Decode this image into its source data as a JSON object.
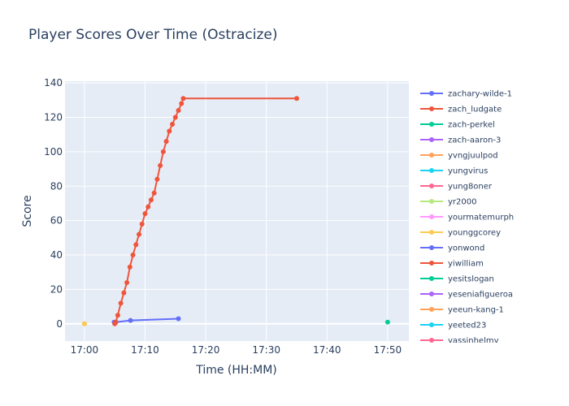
{
  "chart_data": {
    "type": "line",
    "title": "Player Scores Over Time (Ostracize)",
    "xlabel": "Time (HH:MM)",
    "ylabel": "Score",
    "x_tick_labels": [
      "17:00",
      "17:10",
      "17:20",
      "17:30",
      "17:40",
      "17:50"
    ],
    "x_range_minutes": [
      -3.2,
      53.5
    ],
    "ylim": [
      -10,
      141
    ],
    "y_ticks": [
      0,
      20,
      40,
      60,
      80,
      100,
      120,
      140
    ],
    "grid": true,
    "legend_position": "right",
    "series": [
      {
        "name": "zachary-wilde-1",
        "color": "#636efa",
        "x": [
          "17:04:54",
          "17:05:12",
          "17:07:36",
          "17:15:30"
        ],
        "y": [
          1,
          1,
          2,
          3
        ]
      },
      {
        "name": "zach_ludgate",
        "color": "#ef553b",
        "x": [
          "17:05:00",
          "17:05:10",
          "17:05:30",
          "17:06:00",
          "17:06:30",
          "17:07:00",
          "17:07:30",
          "17:08:00",
          "17:08:30",
          "17:09:00",
          "17:09:30",
          "17:10:00",
          "17:10:30",
          "17:11:00",
          "17:11:30",
          "17:12:00",
          "17:12:30",
          "17:13:00",
          "17:13:30",
          "17:14:00",
          "17:14:30",
          "17:15:00",
          "17:15:30",
          "17:16:00",
          "17:16:18",
          "17:35:00"
        ],
        "y": [
          0,
          1,
          5,
          12,
          18,
          24,
          33,
          40,
          46,
          52,
          58,
          64,
          68,
          72,
          76,
          84,
          92,
          100,
          106,
          112,
          116,
          120,
          124,
          128,
          131,
          131
        ]
      },
      {
        "name": "zach-perkel",
        "color": "#00cc96",
        "x": [
          "17:50:00"
        ],
        "y": [
          1
        ]
      },
      {
        "name": "zach-aaron-3",
        "color": "#ab63fa",
        "x": [],
        "y": []
      },
      {
        "name": "yvngjuulpod",
        "color": "#ffa15a",
        "x": [
          "17:00:00"
        ],
        "y": [
          0
        ]
      },
      {
        "name": "yungvirus",
        "color": "#19d3f3",
        "x": [],
        "y": []
      },
      {
        "name": "yung8oner",
        "color": "#ff6692",
        "x": [],
        "y": []
      },
      {
        "name": "yr2000",
        "color": "#b6e880",
        "x": [],
        "y": []
      },
      {
        "name": "yourmatemurph",
        "color": "#ff97ff",
        "x": [],
        "y": []
      },
      {
        "name": "younggcorey",
        "color": "#fecb52",
        "x": [
          "17:00:00"
        ],
        "y": [
          0
        ]
      },
      {
        "name": "yonwond",
        "color": "#636efa",
        "x": [],
        "y": []
      },
      {
        "name": "yiwilliam",
        "color": "#ef553b",
        "x": [],
        "y": []
      },
      {
        "name": "yesitslogan",
        "color": "#00cc96",
        "x": [],
        "y": []
      },
      {
        "name": "yeseniafigueroa",
        "color": "#ab63fa",
        "x": [],
        "y": []
      },
      {
        "name": "yeeun-kang-1",
        "color": "#ffa15a",
        "x": [],
        "y": []
      },
      {
        "name": "yeeted23",
        "color": "#19d3f3",
        "x": [],
        "y": []
      },
      {
        "name": "yassinhelmy",
        "color": "#ff6692",
        "x": [],
        "y": []
      }
    ]
  }
}
